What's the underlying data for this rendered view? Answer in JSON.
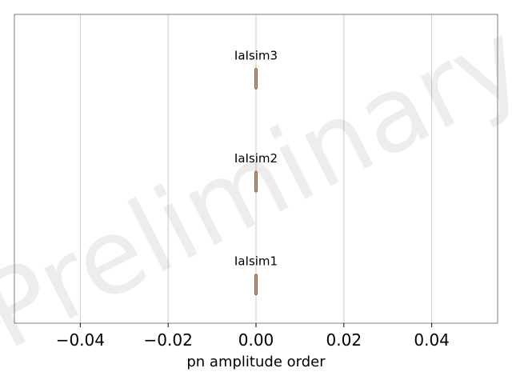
{
  "chart_data": {
    "type": "violin",
    "orientation": "horizontal",
    "xlabel": "pn amplitude order",
    "ylabel": "",
    "xlim": [
      -0.055,
      0.055
    ],
    "xticks": [
      -0.04,
      -0.02,
      0.0,
      0.02,
      0.04
    ],
    "xtick_labels": [
      "−0.04",
      "−0.02",
      "0.00",
      "0.02",
      "0.04"
    ],
    "grid": "vertical",
    "series": [
      {
        "name": "IaIsim3",
        "value": 0.0,
        "spread": 0.0
      },
      {
        "name": "IaIsim2",
        "value": 0.0,
        "spread": 0.0
      },
      {
        "name": "IaIsim1",
        "value": 0.0,
        "spread": 0.0
      }
    ],
    "watermark": "Preliminary",
    "colors": {
      "violin_fill": "#c89a7a",
      "violin_edge": "#7a5a44",
      "grid": "#cccccc",
      "frame": "#7f7f7f"
    }
  }
}
